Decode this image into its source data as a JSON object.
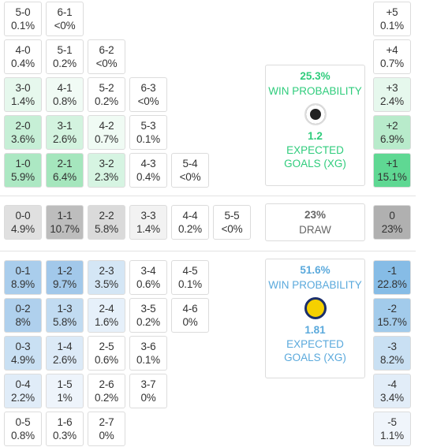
{
  "home": {
    "rows": [
      [
        {
          "score": "5-0",
          "prob": "0.1%",
          "bg": "#ffffff"
        },
        {
          "score": "6-1",
          "prob": "<0%",
          "bg": "#ffffff"
        }
      ],
      [
        {
          "score": "4-0",
          "prob": "0.4%",
          "bg": "#ffffff"
        },
        {
          "score": "5-1",
          "prob": "0.2%",
          "bg": "#ffffff"
        },
        {
          "score": "6-2",
          "prob": "<0%",
          "bg": "#ffffff"
        }
      ],
      [
        {
          "score": "3-0",
          "prob": "1.4%",
          "bg": "#e6f8ed"
        },
        {
          "score": "4-1",
          "prob": "0.8%",
          "bg": "#f1fbf5"
        },
        {
          "score": "5-2",
          "prob": "0.2%",
          "bg": "#ffffff"
        },
        {
          "score": "6-3",
          "prob": "<0%",
          "bg": "#ffffff"
        }
      ],
      [
        {
          "score": "2-0",
          "prob": "3.6%",
          "bg": "#c6efd6"
        },
        {
          "score": "3-1",
          "prob": "2.6%",
          "bg": "#d3f3df"
        },
        {
          "score": "4-2",
          "prob": "0.7%",
          "bg": "#f0fbf4"
        },
        {
          "score": "5-3",
          "prob": "0.1%",
          "bg": "#ffffff"
        }
      ],
      [
        {
          "score": "1-0",
          "prob": "5.9%",
          "bg": "#ace8c3"
        },
        {
          "score": "2-1",
          "prob": "6.4%",
          "bg": "#a5e6bd"
        },
        {
          "score": "3-2",
          "prob": "2.3%",
          "bg": "#d6f4e2"
        },
        {
          "score": "4-3",
          "prob": "0.4%",
          "bg": "#ffffff"
        },
        {
          "score": "5-4",
          "prob": "<0%",
          "bg": "#ffffff"
        }
      ]
    ],
    "margins": [
      {
        "score": "+5",
        "prob": "0.1%",
        "bg": "#ffffff"
      },
      {
        "score": "+4",
        "prob": "0.7%",
        "bg": "#ffffff"
      },
      {
        "score": "+3",
        "prob": "2.4%",
        "bg": "#e6f8ed"
      },
      {
        "score": "+2",
        "prob": "6.9%",
        "bg": "#b8ebcb"
      },
      {
        "score": "+1",
        "prob": "15.1%",
        "bg": "#5fd893"
      }
    ],
    "panel": {
      "win": "25.3%",
      "win_label": "WIN PROBABILITY",
      "xg": "1.2",
      "xg_label": "EXPECTED GOALS (XG)",
      "color": "#2fcc7c"
    }
  },
  "draw": {
    "rows": [
      [
        {
          "score": "0-0",
          "prob": "4.9%",
          "bg": "#e0e0e0"
        },
        {
          "score": "1-1",
          "prob": "10.7%",
          "bg": "#bdbdbd"
        },
        {
          "score": "2-2",
          "prob": "5.8%",
          "bg": "#dadada"
        },
        {
          "score": "3-3",
          "prob": "1.4%",
          "bg": "#f2f2f2"
        },
        {
          "score": "4-4",
          "prob": "0.2%",
          "bg": "#ffffff"
        },
        {
          "score": "5-5",
          "prob": "<0%",
          "bg": "#ffffff"
        }
      ]
    ],
    "margins": [
      {
        "score": "0",
        "prob": "23%",
        "bg": "#b0b0b0"
      }
    ],
    "panel": {
      "win": "23%",
      "win_label": "DRAW",
      "color": "#666666"
    }
  },
  "away": {
    "rows": [
      [
        {
          "score": "0-1",
          "prob": "8.9%",
          "bg": "#a9cdec"
        },
        {
          "score": "1-2",
          "prob": "9.7%",
          "bg": "#a2c8ea"
        },
        {
          "score": "2-3",
          "prob": "3.5%",
          "bg": "#d4e6f5"
        },
        {
          "score": "3-4",
          "prob": "0.6%",
          "bg": "#ffffff"
        },
        {
          "score": "4-5",
          "prob": "0.1%",
          "bg": "#ffffff"
        }
      ],
      [
        {
          "score": "0-2",
          "prob": "8%",
          "bg": "#afd0ed"
        },
        {
          "score": "1-3",
          "prob": "5.8%",
          "bg": "#c1dbf1"
        },
        {
          "score": "2-4",
          "prob": "1.6%",
          "bg": "#e6f0fa"
        },
        {
          "score": "3-5",
          "prob": "0.2%",
          "bg": "#ffffff"
        },
        {
          "score": "4-6",
          "prob": "0%",
          "bg": "#ffffff"
        }
      ],
      [
        {
          "score": "0-3",
          "prob": "4.9%",
          "bg": "#c9e0f3"
        },
        {
          "score": "1-4",
          "prob": "2.6%",
          "bg": "#dceaf7"
        },
        {
          "score": "2-5",
          "prob": "0.6%",
          "bg": "#ffffff"
        },
        {
          "score": "3-6",
          "prob": "0.1%",
          "bg": "#ffffff"
        }
      ],
      [
        {
          "score": "0-4",
          "prob": "2.2%",
          "bg": "#e0ecf8"
        },
        {
          "score": "1-5",
          "prob": "1%",
          "bg": "#eef4fb"
        },
        {
          "score": "2-6",
          "prob": "0.2%",
          "bg": "#ffffff"
        },
        {
          "score": "3-7",
          "prob": "0%",
          "bg": "#ffffff"
        }
      ],
      [
        {
          "score": "0-5",
          "prob": "0.8%",
          "bg": "#ffffff"
        },
        {
          "score": "1-6",
          "prob": "0.3%",
          "bg": "#ffffff"
        },
        {
          "score": "2-7",
          "prob": "0%",
          "bg": "#ffffff"
        }
      ]
    ],
    "margins": [
      {
        "score": "-1",
        "prob": "22.8%",
        "bg": "#86bce6"
      },
      {
        "score": "-2",
        "prob": "15.7%",
        "bg": "#a2cbeb"
      },
      {
        "score": "-3",
        "prob": "8.2%",
        "bg": "#c9e0f3"
      },
      {
        "score": "-4",
        "prob": "3.4%",
        "bg": "#e2edf8"
      },
      {
        "score": "-5",
        "prob": "1.1%",
        "bg": "#f0f5fb"
      }
    ],
    "panel": {
      "win": "51.6%",
      "win_label": "WIN PROBABILITY",
      "xg": "1.81",
      "xg_label": "EXPECTED GOALS (XG)",
      "color": "#5aa9dc"
    }
  }
}
